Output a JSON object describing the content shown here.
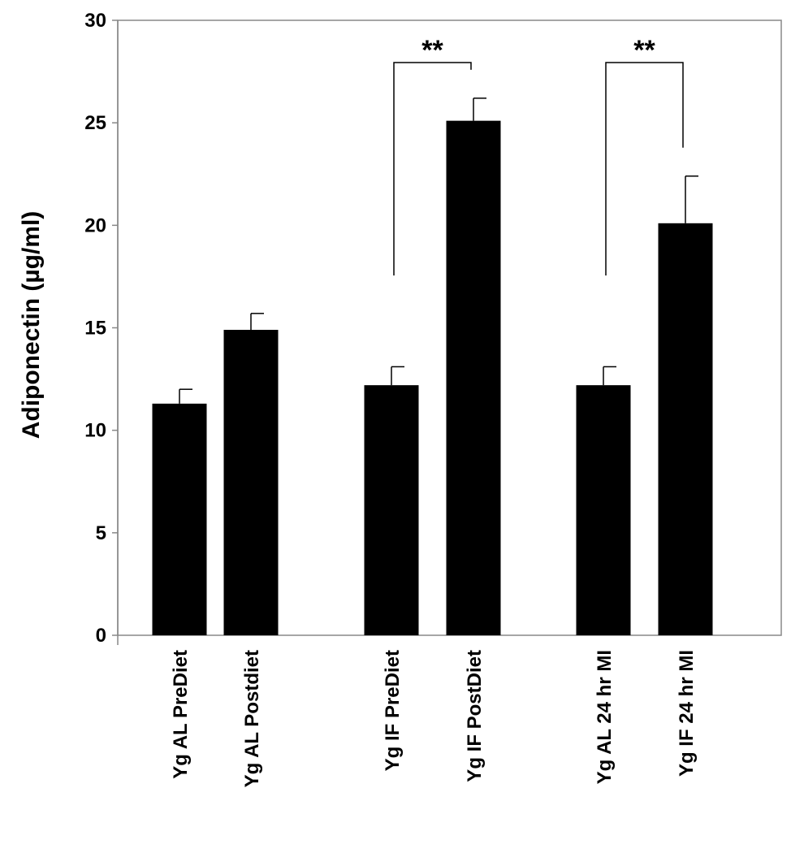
{
  "chart_data": {
    "type": "bar",
    "title": "",
    "xlabel": "",
    "ylabel": "Adiponectin (µg/ml)",
    "ylim": [
      0,
      30
    ],
    "yticks": [
      0,
      5,
      10,
      15,
      20,
      25,
      30
    ],
    "grid": false,
    "legend": "none",
    "bar_color": "#000000",
    "categories": [
      "Yg AL PreDiet",
      "Yg AL Postdiet",
      "Yg IF PreDiet",
      "Yg IF PostDiet",
      "Yg AL 24 hr MI",
      "Yg IF 24 hr MI"
    ],
    "values": [
      11.3,
      14.9,
      12.2,
      25.1,
      12.2,
      20.1
    ],
    "errors": [
      0.7,
      0.8,
      0.9,
      1.1,
      0.9,
      2.3
    ],
    "significance": [
      {
        "from": 2,
        "to": 3,
        "label": "**"
      },
      {
        "from": 4,
        "to": 5,
        "label": "**"
      }
    ]
  }
}
